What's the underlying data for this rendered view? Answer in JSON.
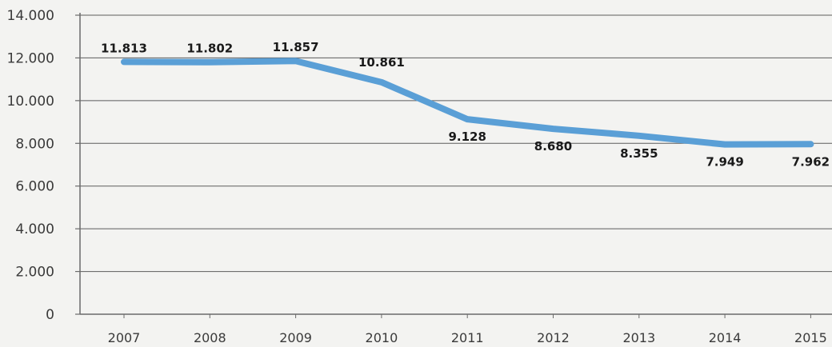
{
  "chart_data": {
    "type": "line",
    "title": "",
    "xlabel": "",
    "ylabel": "",
    "categories": [
      "2007",
      "2008",
      "2009",
      "2010",
      "2011",
      "2012",
      "2013",
      "2014",
      "2015"
    ],
    "series": [
      {
        "values": [
          11813,
          11802,
          11857,
          10861,
          9128,
          8680,
          8355,
          7949,
          7962
        ],
        "labels": [
          "11.813",
          "11.802",
          "11.857",
          "10.861",
          "9.128",
          "8.680",
          "8.355",
          "7.949",
          "7.962"
        ]
      }
    ],
    "ylim": [
      0,
      14000
    ],
    "yticks": [
      0,
      2000,
      4000,
      6000,
      8000,
      10000,
      12000,
      14000
    ],
    "ytick_labels": [
      "0",
      "2.000",
      "4.000",
      "6.000",
      "8.000",
      "10.000",
      "12.000",
      "14.000"
    ],
    "grid": true,
    "legend": "none",
    "colors": {
      "line": "#5a9fd6",
      "grid": "#5c5c5c",
      "axis": "#6b6b6b",
      "text": "#1a1a1a",
      "tick_text": "#3a3a3a",
      "background": "#f3f3f1"
    }
  }
}
